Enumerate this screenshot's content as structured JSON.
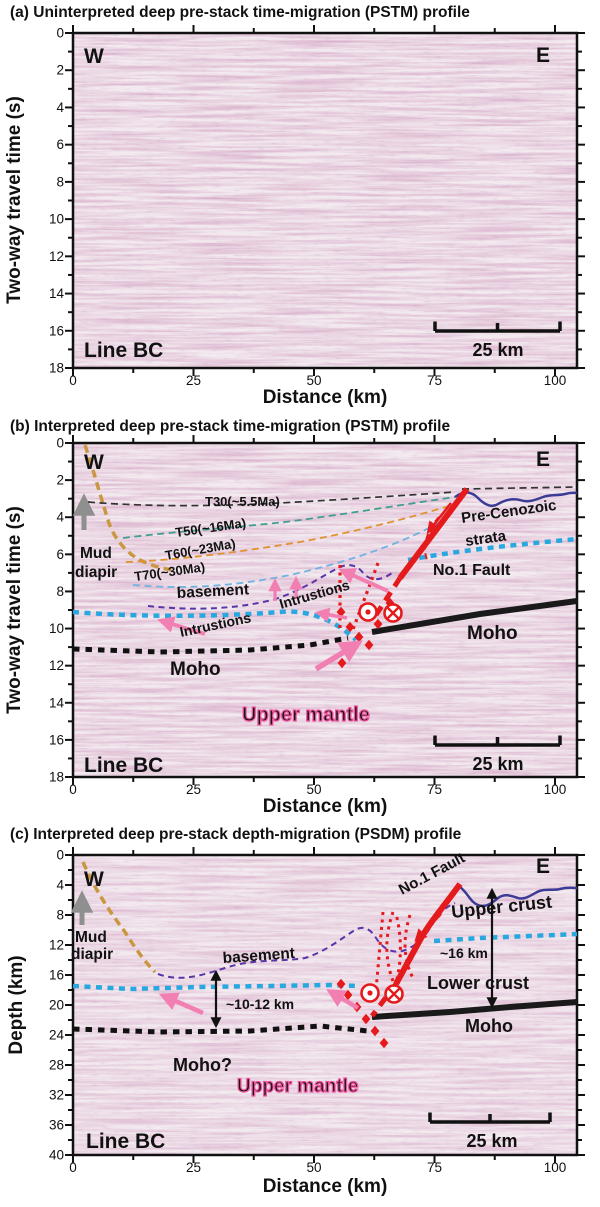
{
  "panels": {
    "a": {
      "title": "(a) Uninterpreted deep pre-stack time-migration (PSTM) profile",
      "ylabel": "Two-way travel time (s)",
      "xlabel": "Distance (km)",
      "yticks": [
        "0",
        "2",
        "4",
        "6",
        "8",
        "10",
        "12",
        "14",
        "16",
        "18"
      ],
      "xticks": [
        "0",
        "25",
        "50",
        "75",
        "100"
      ],
      "west": "W",
      "east": "E",
      "line_name": "Line BC",
      "scalebar": "25 km"
    },
    "b": {
      "title": "(b) Interpreted deep pre-stack time-migration (PSTM) profile",
      "ylabel": "Two-way travel time (s)",
      "xlabel": "Distance (km)",
      "yticks": [
        "0",
        "2",
        "4",
        "6",
        "8",
        "10",
        "12",
        "14",
        "16",
        "18"
      ],
      "xticks": [
        "0",
        "25",
        "50",
        "75",
        "100"
      ],
      "west": "W",
      "east": "E",
      "line_name": "Line BC",
      "scalebar": "25 km",
      "annotations": {
        "mud1": "Mud",
        "mud2": "diapir",
        "t30": "T30(~5.5Ma)",
        "t50": "T50(~16Ma)",
        "t60": "T60(~23Ma)",
        "t70": "T70(~30Ma)",
        "basement": "basement",
        "intrusions_a": "Intrustions",
        "intrusions_b": "Intrustions",
        "precenozoic1": "Pre-Cenozoic",
        "precenozoic2": "strata",
        "fault": "No.1 Fault",
        "moho_west": "Moho",
        "moho_east": "Moho",
        "upper_mantle": "Upper mantle"
      }
    },
    "c": {
      "title": "(c) Interpreted deep pre-stack depth-migration (PSDM) profile",
      "ylabel": "Depth (km)",
      "xlabel": "Distance (km)",
      "yticks": [
        "0",
        "4",
        "8",
        "12",
        "16",
        "20",
        "24",
        "28",
        "32",
        "36",
        "40"
      ],
      "xticks": [
        "0",
        "25",
        "50",
        "75",
        "100"
      ],
      "west": "W",
      "east": "E",
      "line_name": "Line BC",
      "scalebar": "25 km",
      "annotations": {
        "mud1": "Mud",
        "mud2": "diapir",
        "basement": "basement",
        "thickness_west": "~10-12 km",
        "thickness_east": "~16 km",
        "moho_q": "Moho?",
        "moho": "Moho",
        "upper_mantle": "Upper mantle",
        "fault": "No.1 Fault",
        "upper_crust": "Upper crust",
        "lower_crust": "Lower crust"
      }
    }
  },
  "colors": {
    "fault_red": "#e41a1c",
    "cyan_boundary": "#29a8df",
    "pink_arrow": "#f27fb2",
    "tan_diapir": "#c9973f",
    "navy_line": "#3c3c96",
    "purple_basement": "#5a35a8",
    "teal_t50": "#3f9e8f",
    "orange_t60": "#e0922f",
    "sky_t70": "#6fb3e0",
    "gray_text": "#787878",
    "upper_mantle_pink": "#f0569f"
  },
  "chart_data": [
    {
      "type": "heatmap",
      "title": "(a) Uninterpreted deep pre-stack time-migration (PSTM) profile",
      "xlabel": "Distance (km)",
      "ylabel": "Two-way travel time (s)",
      "xlim": [
        0,
        104
      ],
      "ylim": [
        18,
        0
      ],
      "xticks": [
        0,
        25,
        50,
        75,
        100
      ],
      "yticks": [
        0,
        2,
        4,
        6,
        8,
        10,
        12,
        14,
        16,
        18
      ],
      "notes": "Uninterpreted seismic reflection image of Line BC with 25 km scale bar; W on left, E on right."
    },
    {
      "type": "heatmap",
      "title": "(b) Interpreted deep pre-stack time-migration (PSTM) profile",
      "xlabel": "Distance (km)",
      "ylabel": "Two-way travel time (s)",
      "xlim": [
        0,
        104
      ],
      "ylim": [
        18,
        0
      ],
      "xticks": [
        0,
        25,
        50,
        75,
        100
      ],
      "yticks": [
        0,
        2,
        4,
        6,
        8,
        10,
        12,
        14,
        16,
        18
      ],
      "horizons_twt_s": {
        "T30(~5.5Ma)": [
          [
            3,
            3.2
          ],
          [
            40,
            3.3
          ],
          [
            62,
            2.8
          ]
        ],
        "T50(~16Ma)": [
          [
            11,
            5.1
          ],
          [
            40,
            4.6
          ],
          [
            79,
            2.9
          ]
        ],
        "T60(~23Ma)": [
          [
            11,
            6.4
          ],
          [
            45,
            5.6
          ],
          [
            78,
            3.4
          ]
        ],
        "T70(~30Ma)": [
          [
            13,
            7.7
          ],
          [
            40,
            7.3
          ],
          [
            75,
            4.3
          ]
        ],
        "basement": [
          [
            16,
            8.8
          ],
          [
            35,
            8.3
          ],
          [
            55,
            6.7
          ],
          [
            66,
            7.0
          ]
        ],
        "cyan_boundary_west": [
          [
            0,
            9.1
          ],
          [
            50,
            9.0
          ],
          [
            59,
            10.1
          ]
        ],
        "cyan_boundary_east": [
          [
            70,
            5.9
          ],
          [
            104,
            5.2
          ]
        ],
        "Moho_west_dotted": [
          [
            0,
            11.1
          ],
          [
            45,
            11.2
          ],
          [
            57,
            10.5
          ]
        ],
        "Moho_east_solid": [
          [
            62,
            10.2
          ],
          [
            104,
            8.6
          ]
        ],
        "No1_Fault": [
          [
            82,
            2.5
          ],
          [
            62,
            9.4
          ]
        ]
      }
    },
    {
      "type": "heatmap",
      "title": "(c) Interpreted deep pre-stack depth-migration (PSDM) profile",
      "xlabel": "Distance (km)",
      "ylabel": "Depth (km)",
      "xlim": [
        0,
        104
      ],
      "ylim": [
        40,
        0
      ],
      "xticks": [
        0,
        25,
        50,
        75,
        100
      ],
      "yticks": [
        0,
        4,
        8,
        12,
        16,
        20,
        24,
        28,
        32,
        36,
        40
      ],
      "horizons_depth_km": {
        "basement": [
          [
            18,
            16.0
          ],
          [
            40,
            17.0
          ],
          [
            58,
            10.5
          ],
          [
            66,
            12.9
          ]
        ],
        "cyan_boundary_west": [
          [
            0,
            17.5
          ],
          [
            59,
            17.5
          ]
        ],
        "cyan_boundary_east": [
          [
            75,
            11.5
          ],
          [
            104,
            10.5
          ]
        ],
        "Moho_west_dotted": [
          [
            0,
            23.2
          ],
          [
            61,
            23.4
          ]
        ],
        "Moho_east_solid": [
          [
            62,
            21.6
          ],
          [
            104,
            19.6
          ]
        ],
        "No1_Fault": [
          [
            80,
            3.9
          ],
          [
            62,
            21.5
          ]
        ],
        "crust_thickness_west_km": "~10-12",
        "crust_thickness_east_km": "~16"
      }
    }
  ]
}
